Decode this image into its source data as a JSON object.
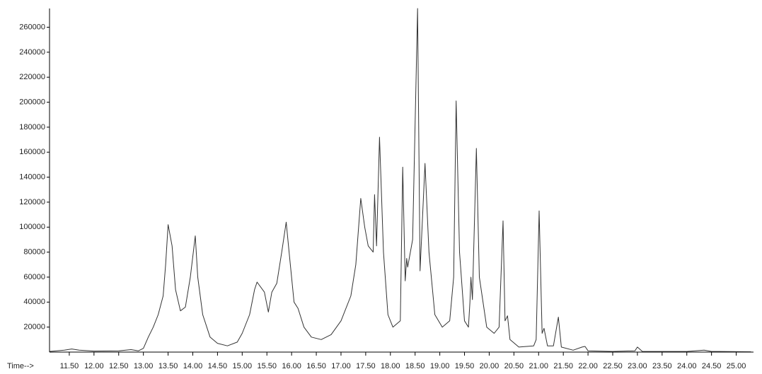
{
  "chart_data": {
    "type": "line",
    "xlabel": "Time-->",
    "color": "#333333",
    "x": [
      11.1,
      11.4,
      11.55,
      11.7,
      12.0,
      12.5,
      12.75,
      12.9,
      13.0,
      13.1,
      13.2,
      13.3,
      13.4,
      13.45,
      13.5,
      13.58,
      13.65,
      13.75,
      13.85,
      13.95,
      14.05,
      14.1,
      14.2,
      14.35,
      14.5,
      14.7,
      14.9,
      15.0,
      15.15,
      15.25,
      15.3,
      15.45,
      15.53,
      15.6,
      15.7,
      15.8,
      15.89,
      15.95,
      16.05,
      16.13,
      16.25,
      16.4,
      16.6,
      16.8,
      17.0,
      17.2,
      17.3,
      17.4,
      17.48,
      17.55,
      17.65,
      17.68,
      17.72,
      17.78,
      17.86,
      17.95,
      18.05,
      18.2,
      18.25,
      18.3,
      18.33,
      18.35,
      18.45,
      18.55,
      18.6,
      18.7,
      18.78,
      18.9,
      19.05,
      19.2,
      19.28,
      19.33,
      19.4,
      19.5,
      19.58,
      19.61,
      19.63,
      19.66,
      19.74,
      19.8,
      19.95,
      20.1,
      20.2,
      20.28,
      20.32,
      20.37,
      20.42,
      20.6,
      20.9,
      20.95,
      21.01,
      21.07,
      21.11,
      21.18,
      21.3,
      21.4,
      21.46,
      21.7,
      21.88,
      21.94,
      22.0,
      22.5,
      22.95,
      23.0,
      23.1,
      24.0,
      24.35,
      24.5,
      25.3
    ],
    "values": [
      500,
      1500,
      2500,
      1500,
      800,
      1000,
      2000,
      1000,
      3000,
      12000,
      20000,
      30000,
      45000,
      70000,
      102000,
      85000,
      50000,
      33000,
      36000,
      60000,
      93000,
      60000,
      30000,
      12000,
      7000,
      5000,
      8000,
      15000,
      30000,
      50000,
      56000,
      48000,
      32000,
      48000,
      55000,
      80000,
      104000,
      80000,
      40000,
      35000,
      20000,
      12000,
      10000,
      14000,
      25000,
      45000,
      70000,
      123000,
      100000,
      85000,
      80000,
      126000,
      85000,
      172000,
      80000,
      30000,
      20000,
      25000,
      148000,
      57000,
      75000,
      68000,
      90000,
      275000,
      65000,
      151000,
      80000,
      30000,
      20000,
      25000,
      60000,
      201000,
      80000,
      25000,
      20000,
      40000,
      60000,
      42000,
      163000,
      60000,
      20000,
      15000,
      20000,
      105000,
      25000,
      29000,
      10000,
      4000,
      5000,
      10000,
      113000,
      15000,
      19000,
      5000,
      5000,
      28000,
      4000,
      1500,
      4000,
      4500,
      1000,
      500,
      1000,
      4000,
      500,
      500,
      1500,
      500,
      300
    ],
    "xlim": [
      11.1,
      25.35
    ],
    "xticks": [
      {
        "value": 11.5,
        "label": "11.50"
      },
      {
        "value": 12.0,
        "label": "12.00"
      },
      {
        "value": 12.5,
        "label": "12.50"
      },
      {
        "value": 13.0,
        "label": "13.00"
      },
      {
        "value": 13.5,
        "label": "13.50"
      },
      {
        "value": 14.0,
        "label": "14.00"
      },
      {
        "value": 14.5,
        "label": "14.50"
      },
      {
        "value": 15.0,
        "label": "15.00"
      },
      {
        "value": 15.5,
        "label": "15.50"
      },
      {
        "value": 16.0,
        "label": "16.00"
      },
      {
        "value": 16.5,
        "label": "16.50"
      },
      {
        "value": 17.0,
        "label": "17.00"
      },
      {
        "value": 17.5,
        "label": "17.50"
      },
      {
        "value": 18.0,
        "label": "18.00"
      },
      {
        "value": 18.5,
        "label": "18.50"
      },
      {
        "value": 19.0,
        "label": "19.00"
      },
      {
        "value": 19.5,
        "label": "19.50"
      },
      {
        "value": 20.0,
        "label": "20.00"
      },
      {
        "value": 20.5,
        "label": "20.50"
      },
      {
        "value": 21.0,
        "label": "21.00"
      },
      {
        "value": 21.5,
        "label": "21.50"
      },
      {
        "value": 22.0,
        "label": "22.00"
      },
      {
        "value": 22.5,
        "label": "22.50"
      },
      {
        "value": 23.0,
        "label": "23.00"
      },
      {
        "value": 23.5,
        "label": "23.50"
      },
      {
        "value": 24.0,
        "label": "24.00"
      },
      {
        "value": 24.5,
        "label": "24.50"
      },
      {
        "value": 25.0,
        "label": "25.00"
      }
    ],
    "ylim": [
      0,
      275000
    ],
    "yticks": [
      20000,
      40000,
      60000,
      80000,
      100000,
      120000,
      140000,
      160000,
      180000,
      200000,
      220000,
      240000,
      260000
    ],
    "grid": false
  }
}
